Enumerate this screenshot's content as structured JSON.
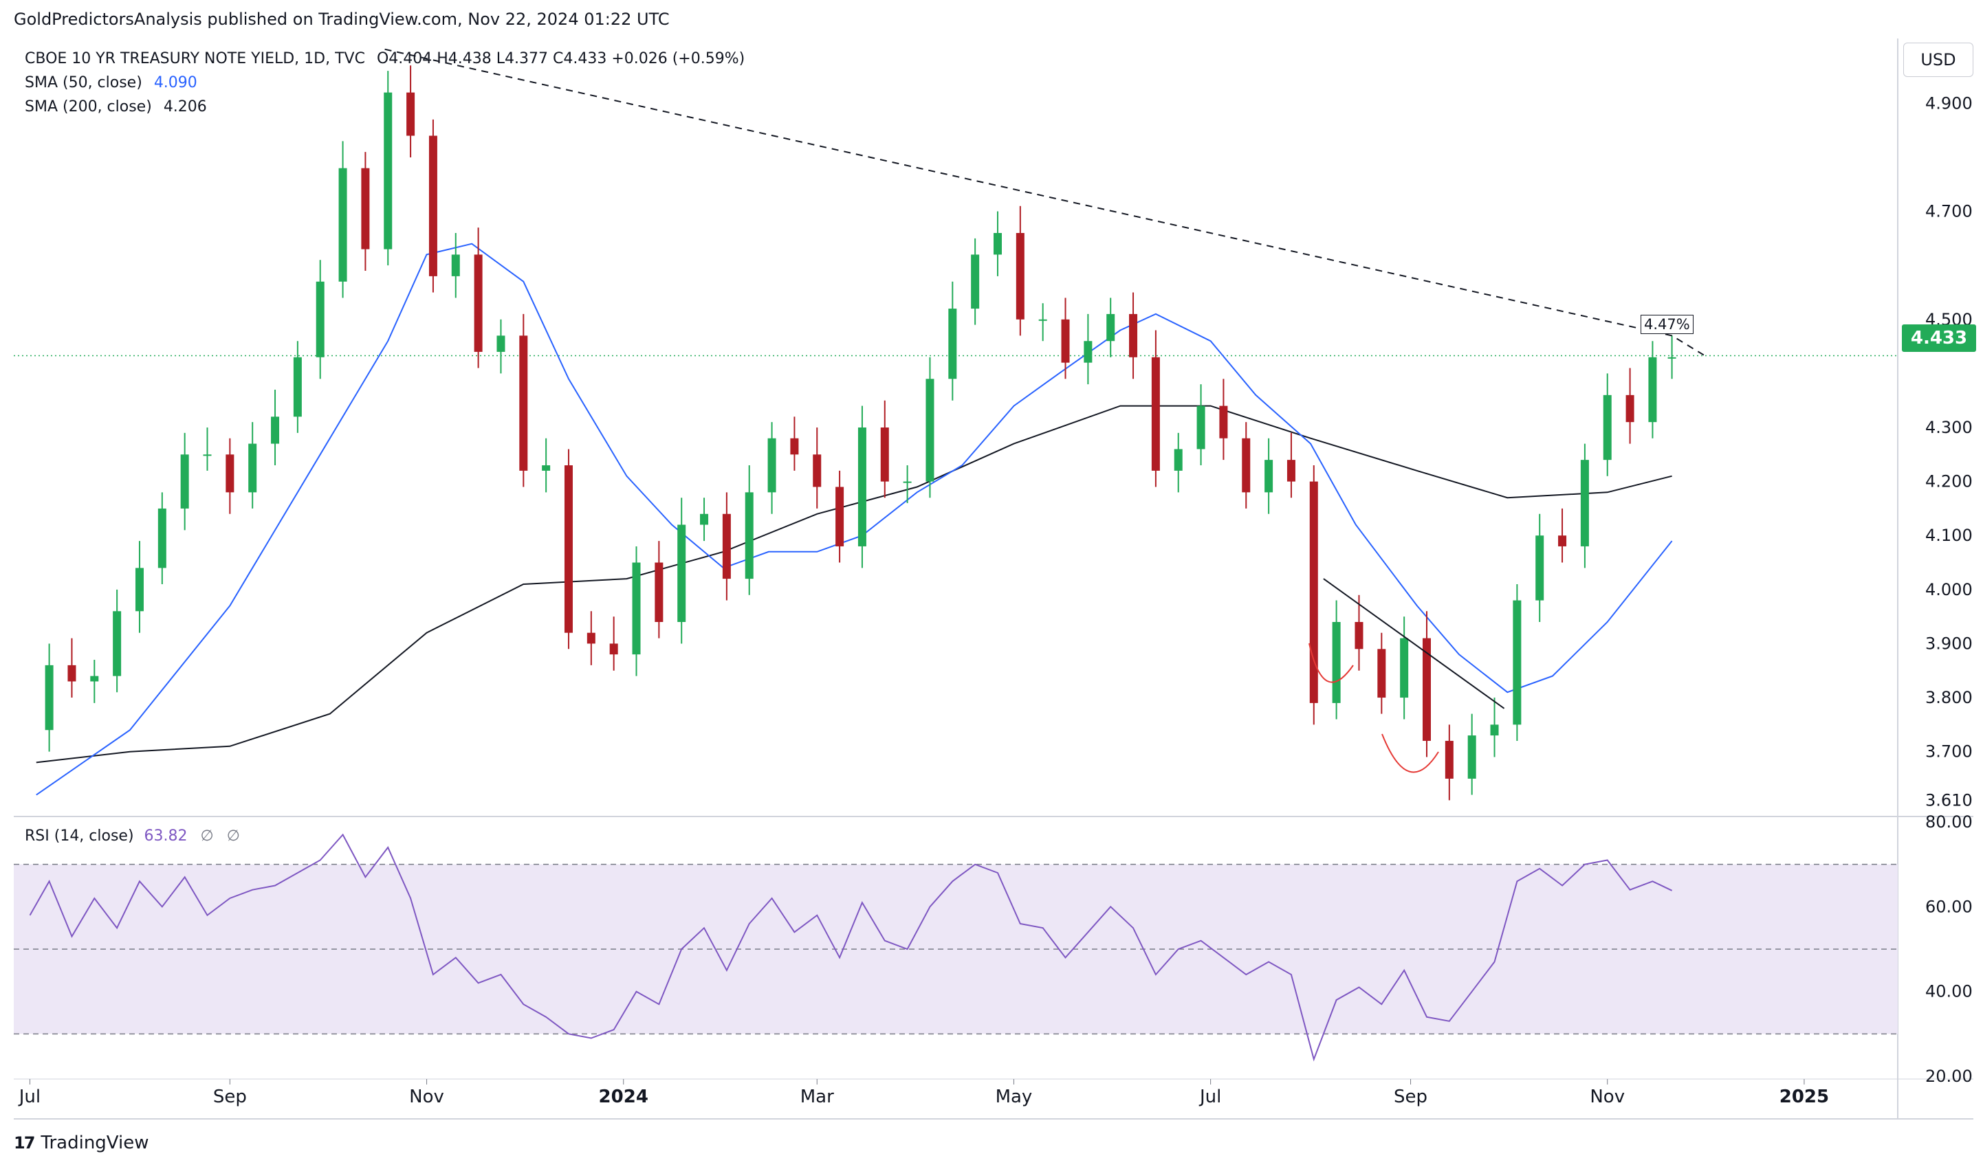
{
  "publisher_line": "GoldPredictorsAnalysis published on TradingView.com, Nov 22, 2024 01:22 UTC",
  "legend": {
    "symbol": "CBOE 10 YR TREASURY NOTE YIELD, 1D, TVC",
    "ohlc": "O4.404  H4.438  L4.377  C4.433  +0.026 (+0.59%)",
    "sma50_label": "SMA (50, close)",
    "sma50_value": "4.090",
    "sma200_label": "SMA (200, close)",
    "sma200_value": "4.206"
  },
  "rsi_legend": {
    "label": "RSI (14, close)",
    "value": "63.82",
    "extra1": "∅",
    "extra2": "∅"
  },
  "currency": "USD",
  "last_price_tag": "4.433",
  "trendline_label": "4.47%",
  "brand": "TradingView",
  "colors": {
    "up": "#22ab58",
    "down": "#b01d24",
    "sma50": "#2962ff",
    "sma200": "#131722",
    "rsi": "#7e57c2",
    "rsi_band": "#ede7f6",
    "last_price_line": "#22ab58",
    "pattern_curve": "#e53935"
  },
  "chart_data": [
    {
      "type": "candlestick",
      "title": "CBOE 10 YR TREASURY NOTE YIELD, 1D, TVC",
      "xlabel": "",
      "ylabel": "",
      "x_tick_labels": [
        "Jul",
        "Sep",
        "Nov",
        "2024",
        "Mar",
        "May",
        "Jul",
        "Sep",
        "Nov",
        "2025"
      ],
      "y_tick_labels": [
        "4.900",
        "4.700",
        "4.500",
        "4.300",
        "4.200",
        "4.100",
        "4.000",
        "3.900",
        "3.800",
        "3.700",
        "3.610"
      ],
      "ylim": [
        3.58,
        5.02
      ],
      "grid": false,
      "last_close": 4.433,
      "series": [
        {
          "name": "CBOE 10 YR TREASURY NOTE YIELD",
          "x": [
            "2023-07-01",
            "2023-07-07",
            "2023-07-14",
            "2023-07-21",
            "2023-07-28",
            "2023-08-04",
            "2023-08-11",
            "2023-08-18",
            "2023-08-25",
            "2023-09-01",
            "2023-09-08",
            "2023-09-15",
            "2023-09-22",
            "2023-09-29",
            "2023-10-06",
            "2023-10-13",
            "2023-10-20",
            "2023-10-27",
            "2023-11-03",
            "2023-11-10",
            "2023-11-17",
            "2023-11-24",
            "2023-12-01",
            "2023-12-08",
            "2023-12-15",
            "2023-12-22",
            "2023-12-29",
            "2024-01-05",
            "2024-01-12",
            "2024-01-19",
            "2024-01-26",
            "2024-02-02",
            "2024-02-09",
            "2024-02-16",
            "2024-02-23",
            "2024-03-01",
            "2024-03-08",
            "2024-03-15",
            "2024-03-22",
            "2024-03-29",
            "2024-04-05",
            "2024-04-12",
            "2024-04-19",
            "2024-04-26",
            "2024-05-03",
            "2024-05-10",
            "2024-05-17",
            "2024-05-24",
            "2024-05-31",
            "2024-06-07",
            "2024-06-14",
            "2024-06-21",
            "2024-06-28",
            "2024-07-05",
            "2024-07-12",
            "2024-07-19",
            "2024-07-26",
            "2024-08-02",
            "2024-08-09",
            "2024-08-16",
            "2024-08-23",
            "2024-08-30",
            "2024-09-06",
            "2024-09-13",
            "2024-09-20",
            "2024-09-27",
            "2024-10-04",
            "2024-10-11",
            "2024-10-18",
            "2024-10-25",
            "2024-11-01",
            "2024-11-08",
            "2024-11-15",
            "2024-11-21"
          ],
          "values": [
            3.74,
            3.86,
            3.83,
            3.84,
            3.96,
            4.04,
            4.15,
            4.25,
            4.25,
            4.18,
            4.27,
            4.32,
            4.43,
            4.57,
            4.78,
            4.63,
            4.92,
            4.84,
            4.58,
            4.62,
            4.44,
            4.47,
            4.22,
            4.23,
            3.92,
            3.9,
            3.88,
            4.05,
            3.94,
            4.12,
            4.14,
            4.02,
            4.18,
            4.28,
            4.25,
            4.19,
            4.08,
            4.3,
            4.2,
            4.2,
            4.39,
            4.52,
            4.62,
            4.66,
            4.5,
            4.5,
            4.42,
            4.46,
            4.51,
            4.43,
            4.22,
            4.26,
            4.34,
            4.28,
            4.18,
            4.24,
            4.2,
            3.79,
            3.94,
            3.89,
            3.8,
            3.91,
            3.72,
            3.65,
            3.73,
            3.75,
            3.98,
            4.1,
            4.08,
            4.24,
            4.36,
            4.31,
            4.43,
            4.43
          ]
        },
        {
          "name": "SMA (50, close)",
          "x": [
            "2023-07-03",
            "2023-08-01",
            "2023-09-01",
            "2023-10-02",
            "2023-10-20",
            "2023-11-01",
            "2023-11-15",
            "2023-12-01",
            "2023-12-15",
            "2024-01-02",
            "2024-01-16",
            "2024-02-01",
            "2024-02-15",
            "2024-03-01",
            "2024-03-15",
            "2024-04-01",
            "2024-04-15",
            "2024-05-01",
            "2024-05-15",
            "2024-06-03",
            "2024-06-14",
            "2024-07-01",
            "2024-07-15",
            "2024-08-01",
            "2024-08-15",
            "2024-09-03",
            "2024-09-16",
            "2024-10-01",
            "2024-10-15",
            "2024-11-01",
            "2024-11-21"
          ],
          "values": [
            3.62,
            3.74,
            3.97,
            4.28,
            4.46,
            4.62,
            4.64,
            4.57,
            4.39,
            4.21,
            4.12,
            4.04,
            4.07,
            4.07,
            4.1,
            4.18,
            4.23,
            4.34,
            4.4,
            4.48,
            4.51,
            4.46,
            4.36,
            4.27,
            4.12,
            3.97,
            3.88,
            3.81,
            3.84,
            3.94,
            4.09
          ]
        },
        {
          "name": "SMA (200, close)",
          "x": [
            "2023-07-03",
            "2023-08-01",
            "2023-09-01",
            "2023-10-02",
            "2023-11-01",
            "2023-12-01",
            "2024-01-02",
            "2024-02-01",
            "2024-03-01",
            "2024-04-01",
            "2024-05-01",
            "2024-06-03",
            "2024-07-01",
            "2024-08-01",
            "2024-09-03",
            "2024-10-01",
            "2024-11-01",
            "2024-11-21"
          ],
          "values": [
            3.68,
            3.7,
            3.71,
            3.77,
            3.92,
            4.01,
            4.02,
            4.07,
            4.14,
            4.19,
            4.27,
            4.34,
            4.34,
            4.28,
            4.22,
            4.17,
            4.18,
            4.21
          ]
        },
        {
          "name": "Descending trendline",
          "x": [
            "2023-10-19",
            "2024-11-21",
            "2024-12-02"
          ],
          "values": [
            5.0,
            4.47,
            4.43
          ]
        },
        {
          "name": "Breakout trendline",
          "x": [
            "2024-08-05",
            "2024-09-30"
          ],
          "values": [
            4.02,
            3.78
          ]
        }
      ]
    },
    {
      "type": "line",
      "title": "RSI (14, close)",
      "xlabel": "",
      "ylabel": "",
      "y_tick_labels": [
        "80.00",
        "60.00",
        "40.00",
        "20.00"
      ],
      "ylim": [
        20,
        80
      ],
      "bands": [
        30,
        50,
        70
      ],
      "last_value": 63.82,
      "series": [
        {
          "name": "RSI (14, close)",
          "x": [
            "2023-07-01",
            "2023-07-07",
            "2023-07-14",
            "2023-07-21",
            "2023-07-28",
            "2023-08-04",
            "2023-08-11",
            "2023-08-18",
            "2023-08-25",
            "2023-09-01",
            "2023-09-08",
            "2023-09-15",
            "2023-09-22",
            "2023-09-29",
            "2023-10-06",
            "2023-10-13",
            "2023-10-20",
            "2023-10-27",
            "2023-11-03",
            "2023-11-10",
            "2023-11-17",
            "2023-11-24",
            "2023-12-01",
            "2023-12-08",
            "2023-12-15",
            "2023-12-22",
            "2023-12-29",
            "2024-01-05",
            "2024-01-12",
            "2024-01-19",
            "2024-01-26",
            "2024-02-02",
            "2024-02-09",
            "2024-02-16",
            "2024-02-23",
            "2024-03-01",
            "2024-03-08",
            "2024-03-15",
            "2024-03-22",
            "2024-03-29",
            "2024-04-05",
            "2024-04-12",
            "2024-04-19",
            "2024-04-26",
            "2024-05-03",
            "2024-05-10",
            "2024-05-17",
            "2024-05-24",
            "2024-05-31",
            "2024-06-07",
            "2024-06-14",
            "2024-06-21",
            "2024-06-28",
            "2024-07-05",
            "2024-07-12",
            "2024-07-19",
            "2024-07-26",
            "2024-08-02",
            "2024-08-09",
            "2024-08-16",
            "2024-08-23",
            "2024-08-30",
            "2024-09-06",
            "2024-09-13",
            "2024-09-20",
            "2024-09-27",
            "2024-10-04",
            "2024-10-11",
            "2024-10-18",
            "2024-10-25",
            "2024-11-01",
            "2024-11-08",
            "2024-11-15",
            "2024-11-21"
          ],
          "values": [
            58,
            66,
            53,
            62,
            55,
            66,
            60,
            67,
            58,
            62,
            64,
            65,
            68,
            71,
            77,
            67,
            74,
            62,
            44,
            48,
            42,
            44,
            37,
            34,
            30,
            29,
            31,
            40,
            37,
            50,
            55,
            45,
            56,
            62,
            54,
            58,
            48,
            61,
            52,
            50,
            60,
            66,
            70,
            68,
            56,
            55,
            48,
            54,
            60,
            55,
            44,
            50,
            52,
            48,
            44,
            47,
            44,
            24,
            38,
            41,
            37,
            45,
            34,
            33,
            40,
            47,
            66,
            69,
            65,
            70,
            71,
            64,
            66,
            63.82
          ]
        }
      ]
    }
  ]
}
